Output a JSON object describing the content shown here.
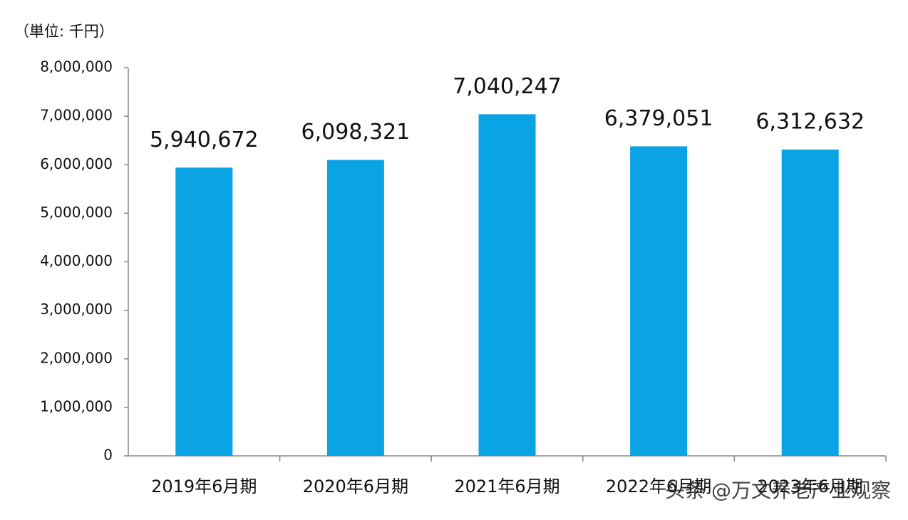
{
  "chart_data": {
    "type": "bar",
    "unit_label": "（単位: 千円）",
    "categories": [
      "2019年6月期",
      "2020年6月期",
      "2021年6月期",
      "2022年6月期",
      "2023年6月期"
    ],
    "values": [
      5940672,
      6098321,
      7040247,
      6379051,
      6312632
    ],
    "value_labels": [
      "5,940,672",
      "6,098,321",
      "7,040,247",
      "6,379,051",
      "6,312,632"
    ],
    "color": "#0aa3e4",
    "ylim": [
      0,
      8000000
    ],
    "yticks": [
      0,
      {
        "value": 1000000,
        "label": "1,000,000"
      },
      {
        "value": 2000000,
        "label": "2,000,000"
      },
      {
        "value": 3000000,
        "label": "3,000,000"
      },
      {
        "value": 4000000,
        "label": "4,000,000"
      },
      {
        "value": 5000000,
        "label": "5,000,000"
      },
      {
        "value": 6000000,
        "label": "6,000,000"
      },
      {
        "value": 7000000,
        "label": "7,000,000"
      },
      {
        "value": 8000000,
        "label": "8,000,000"
      }
    ],
    "grid": false,
    "watermark": "头条 @万文养老产业观察"
  }
}
